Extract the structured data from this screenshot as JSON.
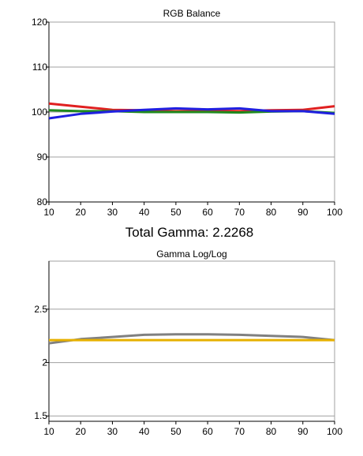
{
  "caption": "Total Gamma: 2.2268",
  "chart_data": [
    {
      "type": "line",
      "title": "RGB Balance",
      "xlabel": "",
      "ylabel": "",
      "x": [
        10,
        20,
        30,
        40,
        50,
        60,
        70,
        80,
        90,
        100
      ],
      "xlim": [
        10,
        100
      ],
      "ylim": [
        80,
        120
      ],
      "yticks": [
        80,
        90,
        100,
        110,
        120
      ],
      "xticks": [
        10,
        20,
        30,
        40,
        50,
        60,
        70,
        80,
        90,
        100
      ],
      "grid": "horizontal",
      "series": [
        {
          "color": "#e02020",
          "values": [
            101.9,
            101.2,
            100.5,
            100.4,
            100.2,
            100.3,
            100.2,
            100.4,
            100.5,
            101.3
          ]
        },
        {
          "color": "#1f8a1f",
          "values": [
            100.4,
            100.2,
            100.2,
            100.0,
            100.0,
            100.0,
            99.9,
            100.1,
            100.2,
            99.8
          ]
        },
        {
          "color": "#2020e0",
          "values": [
            98.6,
            99.6,
            100.1,
            100.5,
            100.8,
            100.6,
            100.8,
            100.2,
            100.2,
            99.6
          ]
        }
      ]
    },
    {
      "type": "line",
      "title": "Gamma Log/Log",
      "xlabel": "",
      "ylabel": "",
      "x": [
        10,
        20,
        30,
        40,
        50,
        60,
        70,
        80,
        90,
        100
      ],
      "xlim": [
        10,
        100
      ],
      "ylim": [
        1.45,
        2.95
      ],
      "yticks": [
        1.5,
        2,
        2.5
      ],
      "ytick_labels": [
        "1.5",
        "2",
        "2.5"
      ],
      "xticks": [
        10,
        20,
        30,
        40,
        50,
        60,
        70,
        80,
        90,
        100
      ],
      "grid": "horizontal",
      "series": [
        {
          "color": "#808080",
          "values": [
            2.18,
            2.22,
            2.24,
            2.26,
            2.265,
            2.265,
            2.26,
            2.25,
            2.24,
            2.21
          ]
        },
        {
          "color": "#e6b000",
          "values": [
            2.21,
            2.21,
            2.21,
            2.21,
            2.21,
            2.21,
            2.21,
            2.21,
            2.21,
            2.21
          ]
        }
      ]
    }
  ]
}
